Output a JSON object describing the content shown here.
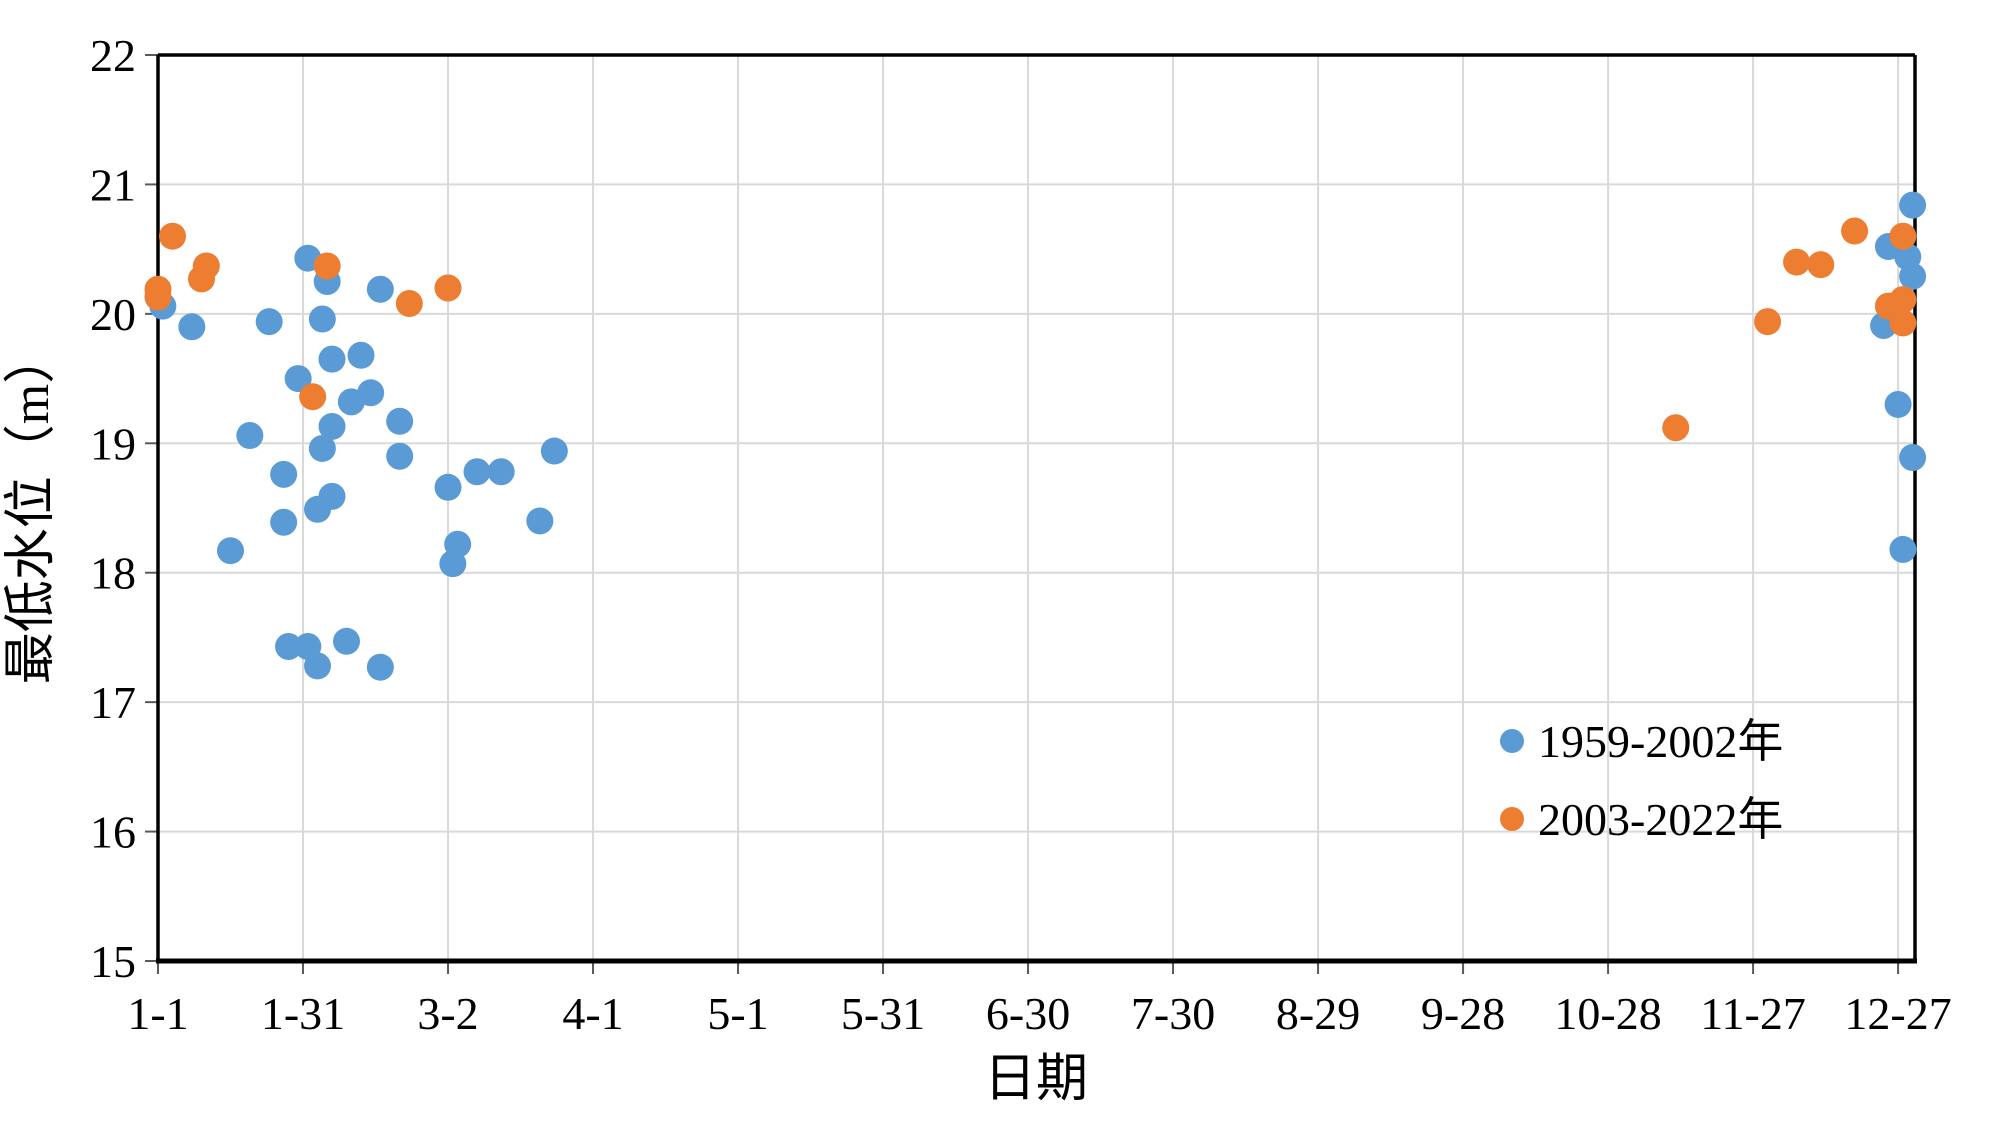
{
  "figure": {
    "background": "#FFFFFF"
  },
  "chart_data": {
    "type": "scatter",
    "title": "",
    "xlabel": "日期",
    "ylabel": "最低水位（m）",
    "x_axis": {
      "tick_labels": [
        "1-1",
        "1-31",
        "3-2",
        "4-1",
        "5-1",
        "5-31",
        "6-30",
        "7-30",
        "8-29",
        "9-28",
        "10-28",
        "11-27",
        "12-27"
      ],
      "tick_days": [
        0,
        30,
        60,
        90,
        120,
        150,
        180,
        210,
        240,
        270,
        300,
        330,
        360
      ],
      "range_days": [
        0,
        363.5
      ]
    },
    "y_axis": {
      "ticks": [
        15,
        16,
        17,
        18,
        19,
        20,
        21,
        22
      ],
      "range": [
        15,
        22
      ]
    },
    "grid": true,
    "legend_position": "inside-bottom-right",
    "series": [
      {
        "name": "1959-2002年",
        "color": "#5B9BD5",
        "points_day_value": [
          [
            1,
            20.06
          ],
          [
            7,
            19.9
          ],
          [
            15,
            18.17
          ],
          [
            19,
            19.06
          ],
          [
            23,
            19.94
          ],
          [
            26,
            18.76
          ],
          [
            26,
            18.39
          ],
          [
            27,
            17.43
          ],
          [
            29,
            19.5
          ],
          [
            31,
            20.43
          ],
          [
            31,
            17.43
          ],
          [
            33,
            17.28
          ],
          [
            33,
            18.49
          ],
          [
            34,
            19.96
          ],
          [
            34,
            18.96
          ],
          [
            35,
            20.25
          ],
          [
            36,
            19.65
          ],
          [
            36,
            19.13
          ],
          [
            36,
            18.59
          ],
          [
            39,
            17.47
          ],
          [
            40,
            19.32
          ],
          [
            42,
            19.68
          ],
          [
            44,
            19.39
          ],
          [
            46,
            20.19
          ],
          [
            46,
            17.27
          ],
          [
            50,
            19.17
          ],
          [
            50,
            18.9
          ],
          [
            60,
            18.66
          ],
          [
            61,
            18.07
          ],
          [
            62,
            18.22
          ],
          [
            66,
            18.78
          ],
          [
            71,
            18.78
          ],
          [
            79,
            18.4
          ],
          [
            82,
            18.94
          ],
          [
            357,
            19.91
          ],
          [
            358,
            20.52
          ],
          [
            360,
            19.3
          ],
          [
            361,
            18.18
          ],
          [
            362,
            20.44
          ],
          [
            363,
            20.84
          ],
          [
            363,
            20.29
          ],
          [
            363,
            18.89
          ]
        ]
      },
      {
        "name": "2003-2022年",
        "color": "#ED7D31",
        "points_day_value": [
          [
            0,
            20.19
          ],
          [
            0,
            20.13
          ],
          [
            3,
            20.6
          ],
          [
            9,
            20.27
          ],
          [
            10,
            20.37
          ],
          [
            32,
            19.36
          ],
          [
            35,
            20.37
          ],
          [
            52,
            20.08
          ],
          [
            60,
            20.2
          ],
          [
            314,
            19.12
          ],
          [
            333,
            19.94
          ],
          [
            339,
            20.4
          ],
          [
            344,
            20.38
          ],
          [
            351,
            20.64
          ],
          [
            358,
            20.06
          ],
          [
            361,
            20.6
          ],
          [
            361,
            20.11
          ],
          [
            361,
            19.93
          ]
        ]
      }
    ]
  },
  "legend": {
    "items": [
      {
        "label": "1959-2002年",
        "color": "#5B9BD5"
      },
      {
        "label": "2003-2022年",
        "color": "#ED7D31"
      }
    ]
  },
  "colors": {
    "axis": "#000000",
    "gridline": "#D9D9D9",
    "tick": "#595959",
    "text": "#000000"
  }
}
